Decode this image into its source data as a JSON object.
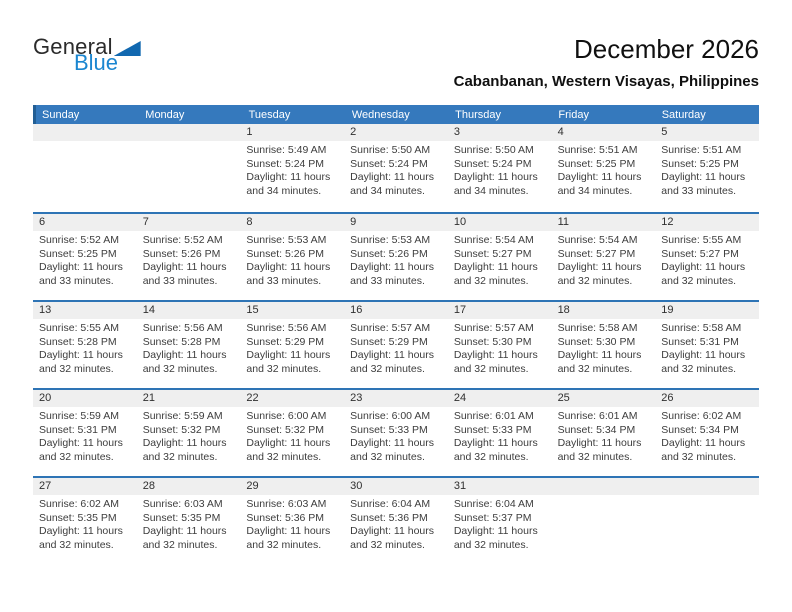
{
  "colors": {
    "header_blue": "#3579BD",
    "header_left_edge": "#225E94",
    "separator_blue": "#2E74B5",
    "number_band_gray": "#EFEFEF",
    "logo_text_dark": "#2B2B2B",
    "logo_blue": "#1B86D0",
    "logo_triangle_blue": "#1168B0"
  },
  "logo": {
    "text_top": "General",
    "text_bottom": "Blue"
  },
  "header": {
    "title": "December 2026",
    "subtitle": "Cabanbanan, Western Visayas, Philippines"
  },
  "calendar": {
    "day_headers": [
      "Sunday",
      "Monday",
      "Tuesday",
      "Wednesday",
      "Thursday",
      "Friday",
      "Saturday"
    ],
    "weeks": [
      [
        null,
        null,
        {
          "day": "1",
          "sunrise": "Sunrise: 5:49 AM",
          "sunset": "Sunset: 5:24 PM",
          "daylight": "Daylight: 11 hours and 34 minutes."
        },
        {
          "day": "2",
          "sunrise": "Sunrise: 5:50 AM",
          "sunset": "Sunset: 5:24 PM",
          "daylight": "Daylight: 11 hours and 34 minutes."
        },
        {
          "day": "3",
          "sunrise": "Sunrise: 5:50 AM",
          "sunset": "Sunset: 5:24 PM",
          "daylight": "Daylight: 11 hours and 34 minutes."
        },
        {
          "day": "4",
          "sunrise": "Sunrise: 5:51 AM",
          "sunset": "Sunset: 5:25 PM",
          "daylight": "Daylight: 11 hours and 34 minutes."
        },
        {
          "day": "5",
          "sunrise": "Sunrise: 5:51 AM",
          "sunset": "Sunset: 5:25 PM",
          "daylight": "Daylight: 11 hours and 33 minutes."
        }
      ],
      [
        {
          "day": "6",
          "sunrise": "Sunrise: 5:52 AM",
          "sunset": "Sunset: 5:25 PM",
          "daylight": "Daylight: 11 hours and 33 minutes."
        },
        {
          "day": "7",
          "sunrise": "Sunrise: 5:52 AM",
          "sunset": "Sunset: 5:26 PM",
          "daylight": "Daylight: 11 hours and 33 minutes."
        },
        {
          "day": "8",
          "sunrise": "Sunrise: 5:53 AM",
          "sunset": "Sunset: 5:26 PM",
          "daylight": "Daylight: 11 hours and 33 minutes."
        },
        {
          "day": "9",
          "sunrise": "Sunrise: 5:53 AM",
          "sunset": "Sunset: 5:26 PM",
          "daylight": "Daylight: 11 hours and 33 minutes."
        },
        {
          "day": "10",
          "sunrise": "Sunrise: 5:54 AM",
          "sunset": "Sunset: 5:27 PM",
          "daylight": "Daylight: 11 hours and 32 minutes."
        },
        {
          "day": "11",
          "sunrise": "Sunrise: 5:54 AM",
          "sunset": "Sunset: 5:27 PM",
          "daylight": "Daylight: 11 hours and 32 minutes."
        },
        {
          "day": "12",
          "sunrise": "Sunrise: 5:55 AM",
          "sunset": "Sunset: 5:27 PM",
          "daylight": "Daylight: 11 hours and 32 minutes."
        }
      ],
      [
        {
          "day": "13",
          "sunrise": "Sunrise: 5:55 AM",
          "sunset": "Sunset: 5:28 PM",
          "daylight": "Daylight: 11 hours and 32 minutes."
        },
        {
          "day": "14",
          "sunrise": "Sunrise: 5:56 AM",
          "sunset": "Sunset: 5:28 PM",
          "daylight": "Daylight: 11 hours and 32 minutes."
        },
        {
          "day": "15",
          "sunrise": "Sunrise: 5:56 AM",
          "sunset": "Sunset: 5:29 PM",
          "daylight": "Daylight: 11 hours and 32 minutes."
        },
        {
          "day": "16",
          "sunrise": "Sunrise: 5:57 AM",
          "sunset": "Sunset: 5:29 PM",
          "daylight": "Daylight: 11 hours and 32 minutes."
        },
        {
          "day": "17",
          "sunrise": "Sunrise: 5:57 AM",
          "sunset": "Sunset: 5:30 PM",
          "daylight": "Daylight: 11 hours and 32 minutes."
        },
        {
          "day": "18",
          "sunrise": "Sunrise: 5:58 AM",
          "sunset": "Sunset: 5:30 PM",
          "daylight": "Daylight: 11 hours and 32 minutes."
        },
        {
          "day": "19",
          "sunrise": "Sunrise: 5:58 AM",
          "sunset": "Sunset: 5:31 PM",
          "daylight": "Daylight: 11 hours and 32 minutes."
        }
      ],
      [
        {
          "day": "20",
          "sunrise": "Sunrise: 5:59 AM",
          "sunset": "Sunset: 5:31 PM",
          "daylight": "Daylight: 11 hours and 32 minutes."
        },
        {
          "day": "21",
          "sunrise": "Sunrise: 5:59 AM",
          "sunset": "Sunset: 5:32 PM",
          "daylight": "Daylight: 11 hours and 32 minutes."
        },
        {
          "day": "22",
          "sunrise": "Sunrise: 6:00 AM",
          "sunset": "Sunset: 5:32 PM",
          "daylight": "Daylight: 11 hours and 32 minutes."
        },
        {
          "day": "23",
          "sunrise": "Sunrise: 6:00 AM",
          "sunset": "Sunset: 5:33 PM",
          "daylight": "Daylight: 11 hours and 32 minutes."
        },
        {
          "day": "24",
          "sunrise": "Sunrise: 6:01 AM",
          "sunset": "Sunset: 5:33 PM",
          "daylight": "Daylight: 11 hours and 32 minutes."
        },
        {
          "day": "25",
          "sunrise": "Sunrise: 6:01 AM",
          "sunset": "Sunset: 5:34 PM",
          "daylight": "Daylight: 11 hours and 32 minutes."
        },
        {
          "day": "26",
          "sunrise": "Sunrise: 6:02 AM",
          "sunset": "Sunset: 5:34 PM",
          "daylight": "Daylight: 11 hours and 32 minutes."
        }
      ],
      [
        {
          "day": "27",
          "sunrise": "Sunrise: 6:02 AM",
          "sunset": "Sunset: 5:35 PM",
          "daylight": "Daylight: 11 hours and 32 minutes."
        },
        {
          "day": "28",
          "sunrise": "Sunrise: 6:03 AM",
          "sunset": "Sunset: 5:35 PM",
          "daylight": "Daylight: 11 hours and 32 minutes."
        },
        {
          "day": "29",
          "sunrise": "Sunrise: 6:03 AM",
          "sunset": "Sunset: 5:36 PM",
          "daylight": "Daylight: 11 hours and 32 minutes."
        },
        {
          "day": "30",
          "sunrise": "Sunrise: 6:04 AM",
          "sunset": "Sunset: 5:36 PM",
          "daylight": "Daylight: 11 hours and 32 minutes."
        },
        {
          "day": "31",
          "sunrise": "Sunrise: 6:04 AM",
          "sunset": "Sunset: 5:37 PM",
          "daylight": "Daylight: 11 hours and 32 minutes."
        },
        null,
        null
      ]
    ]
  }
}
